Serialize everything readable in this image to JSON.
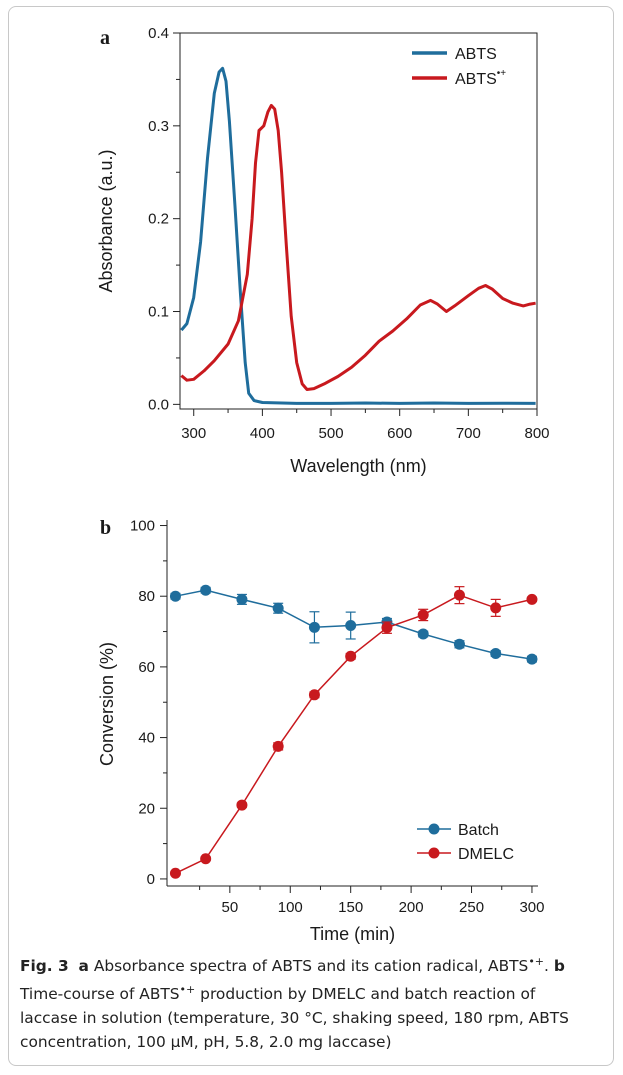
{
  "chart_data": [
    {
      "type": "line",
      "panel_label": "a",
      "xlabel": "Wavelength (nm)",
      "ylabel": "Absorbance (a.u.)",
      "xlim": [
        280,
        800
      ],
      "ylim": [
        -0.005,
        0.4
      ],
      "xticks": [
        300,
        400,
        500,
        600,
        700,
        800
      ],
      "yticks": [
        0.0,
        0.1,
        0.2,
        0.3,
        0.4
      ],
      "ytick_labels": [
        "0.0",
        "0.1",
        "0.2",
        "0.3",
        "0.4"
      ],
      "legend_position": "top-right",
      "series": [
        {
          "name": "ABTS",
          "color": "#1f6d9c",
          "points": [
            [
              282,
              0.08
            ],
            [
              290,
              0.087
            ],
            [
              300,
              0.115
            ],
            [
              310,
              0.175
            ],
            [
              320,
              0.265
            ],
            [
              330,
              0.335
            ],
            [
              337,
              0.358
            ],
            [
              342,
              0.362
            ],
            [
              347,
              0.348
            ],
            [
              352,
              0.305
            ],
            [
              360,
              0.215
            ],
            [
              368,
              0.12
            ],
            [
              375,
              0.045
            ],
            [
              380,
              0.012
            ],
            [
              388,
              0.004
            ],
            [
              400,
              0.002
            ],
            [
              450,
              0.001
            ],
            [
              500,
              0.001
            ],
            [
              550,
              0.0015
            ],
            [
              600,
              0.001
            ],
            [
              650,
              0.0015
            ],
            [
              700,
              0.001
            ],
            [
              750,
              0.0012
            ],
            [
              798,
              0.001
            ]
          ]
        },
        {
          "name": "ABTS•+",
          "color": "#c8191e",
          "points": [
            [
              282,
              0.031
            ],
            [
              290,
              0.026
            ],
            [
              300,
              0.027
            ],
            [
              315,
              0.036
            ],
            [
              330,
              0.047
            ],
            [
              350,
              0.065
            ],
            [
              365,
              0.09
            ],
            [
              378,
              0.14
            ],
            [
              385,
              0.2
            ],
            [
              390,
              0.26
            ],
            [
              395,
              0.295
            ],
            [
              402,
              0.3
            ],
            [
              408,
              0.315
            ],
            [
              413,
              0.322
            ],
            [
              418,
              0.318
            ],
            [
              423,
              0.295
            ],
            [
              428,
              0.25
            ],
            [
              435,
              0.17
            ],
            [
              442,
              0.095
            ],
            [
              450,
              0.045
            ],
            [
              458,
              0.022
            ],
            [
              465,
              0.016
            ],
            [
              475,
              0.017
            ],
            [
              490,
              0.022
            ],
            [
              510,
              0.03
            ],
            [
              530,
              0.04
            ],
            [
              550,
              0.053
            ],
            [
              570,
              0.068
            ],
            [
              590,
              0.079
            ],
            [
              610,
              0.092
            ],
            [
              630,
              0.107
            ],
            [
              645,
              0.112
            ],
            [
              655,
              0.108
            ],
            [
              668,
              0.1
            ],
            [
              680,
              0.106
            ],
            [
              700,
              0.117
            ],
            [
              715,
              0.125
            ],
            [
              725,
              0.128
            ],
            [
              735,
              0.124
            ],
            [
              750,
              0.114
            ],
            [
              765,
              0.109
            ],
            [
              780,
              0.106
            ],
            [
              790,
              0.108
            ],
            [
              798,
              0.109
            ]
          ]
        }
      ]
    },
    {
      "type": "line",
      "panel_label": "b",
      "xlabel": "Time (min)",
      "ylabel": "Conversion (%)",
      "xlim": [
        -2,
        305
      ],
      "ylim": [
        -2,
        101
      ],
      "xticks": [
        50,
        100,
        150,
        200,
        250,
        300
      ],
      "yticks": [
        0,
        20,
        40,
        60,
        80,
        100
      ],
      "legend_position": "bottom-right",
      "series": [
        {
          "name": "Batch",
          "color": "#1f6d9c",
          "x": [
            5,
            30,
            60,
            90,
            120,
            150,
            180,
            210,
            240,
            270,
            300
          ],
          "y": [
            80.0,
            81.7,
            79.1,
            76.6,
            71.2,
            71.7,
            72.7,
            69.3,
            66.4,
            63.8,
            62.2
          ],
          "error": [
            0.8,
            0.8,
            1.4,
            1.4,
            4.4,
            3.8,
            1.0,
            0.8,
            1.0,
            0.8,
            0.8
          ]
        },
        {
          "name": "DMELC",
          "color": "#c8191e",
          "x": [
            5,
            30,
            60,
            90,
            120,
            150,
            180,
            210,
            240,
            270,
            300
          ],
          "y": [
            1.6,
            5.7,
            20.9,
            37.5,
            52.1,
            63.0,
            71.1,
            74.7,
            80.3,
            76.7,
            79.1
          ],
          "error": [
            0.5,
            0.5,
            0.6,
            1.0,
            0.8,
            0.8,
            1.6,
            1.6,
            2.4,
            2.4,
            0.6
          ]
        }
      ]
    }
  ],
  "caption": {
    "fig_label": "Fig. 3",
    "panel_a_label": "a",
    "panel_a_text": "Absorbance spectra of ABTS and its cation radical, ABTS",
    "radical_superscript": "•+",
    "panel_b_label": "b",
    "line2_prefix": "Time-course of ABTS",
    "line2_suffix": "production by DMELC and batch reaction of",
    "line3": "laccase in solution (temperature, 30 °C, shaking speed, 180 rpm, ABTS",
    "line4": "concentration, 100 µM, pH, 5.8, 2.0 mg laccase)"
  }
}
